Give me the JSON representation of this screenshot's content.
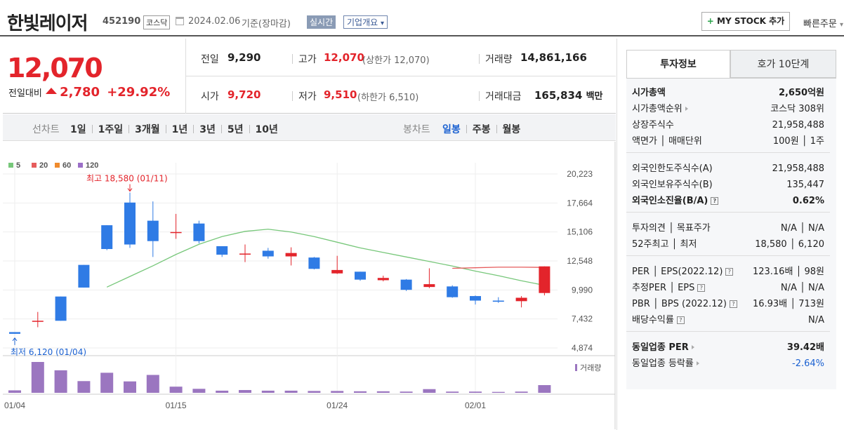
{
  "header": {
    "company": "한빛레이저",
    "code": "452190",
    "market": "코스닥",
    "date": "2024.02.06",
    "basis": "기준(장마감)",
    "realtime": "실시간",
    "overview": "기업개요",
    "overview_arrow": "▾",
    "mystock": "MY STOCK 추가",
    "mystock_plus": "+",
    "quick_order": "빠른주문",
    "quick_arrow": "▾"
  },
  "price": {
    "current": "12,070",
    "change_label": "전일대비",
    "change": "2,780",
    "change_pct": "+29.92%"
  },
  "summary": {
    "prev_label": "전일",
    "prev": "9,290",
    "high_label": "고가",
    "high": "12,070",
    "high_limit": "(상한가 12,070)",
    "volume_label": "거래량",
    "volume": "14,861,166",
    "open_label": "시가",
    "open": "9,720",
    "low_label": "저가",
    "low": "9,510",
    "low_limit": "(하한가 6,510)",
    "amount_label": "거래대금",
    "amount": "165,834",
    "amount_unit": "백만"
  },
  "periods": {
    "line_label": "선차트",
    "line": [
      "1일",
      "1주일",
      "3개월",
      "1년",
      "3년",
      "5년",
      "10년"
    ],
    "candle_label": "봉차트",
    "candle": [
      "일봉",
      "주봉",
      "월봉"
    ]
  },
  "legend": {
    "ma5": "5",
    "ma20": "20",
    "ma60": "60",
    "ma120": "120",
    "volume": "거래량"
  },
  "annotations": {
    "high": "최고 18,580 (01/11)",
    "low": "최저 6,120 (01/04)"
  },
  "chart_data": {
    "type": "candlestick",
    "y_ticks": [
      "20,223",
      "17,664",
      "15,106",
      "12,548",
      "9,990",
      "7,432",
      "4,874"
    ],
    "y_tick_values": [
      20223,
      17664,
      15106,
      12548,
      9990,
      7432,
      4874
    ],
    "ylim": [
      4874,
      20223
    ],
    "x_labels": [
      "01/04",
      "01/15",
      "01/24",
      "02/01"
    ],
    "x_label_index": [
      0,
      7,
      14,
      20
    ],
    "candles": [
      {
        "o": 6270,
        "c": 6120,
        "h": 6270,
        "l": 6120
      },
      {
        "o": 7270,
        "c": 7270,
        "h": 8050,
        "l": 6700
      },
      {
        "o": 9410,
        "c": 7270,
        "h": 9410,
        "l": 7270
      },
      {
        "o": 12200,
        "c": 10200,
        "h": 12200,
        "l": 10200
      },
      {
        "o": 15700,
        "c": 13600,
        "h": 15700,
        "l": 13500
      },
      {
        "o": 17700,
        "c": 14000,
        "h": 18580,
        "l": 13700
      },
      {
        "o": 16100,
        "c": 14300,
        "h": 17800,
        "l": 12900
      },
      {
        "o": 15100,
        "c": 15100,
        "h": 16700,
        "l": 14500
      },
      {
        "o": 15850,
        "c": 14300,
        "h": 16100,
        "l": 14100
      },
      {
        "o": 13850,
        "c": 13100,
        "h": 13850,
        "l": 12900
      },
      {
        "o": 13200,
        "c": 13200,
        "h": 14000,
        "l": 12450
      },
      {
        "o": 13450,
        "c": 12950,
        "h": 13700,
        "l": 12750
      },
      {
        "o": 12950,
        "c": 13250,
        "h": 13750,
        "l": 12150
      },
      {
        "o": 12850,
        "c": 11850,
        "h": 12900,
        "l": 11800
      },
      {
        "o": 11450,
        "c": 11750,
        "h": 13000,
        "l": 11400
      },
      {
        "o": 11600,
        "c": 10900,
        "h": 11600,
        "l": 10800
      },
      {
        "o": 10850,
        "c": 11050,
        "h": 11250,
        "l": 10750
      },
      {
        "o": 10900,
        "c": 10000,
        "h": 10950,
        "l": 9900
      },
      {
        "o": 10250,
        "c": 10500,
        "h": 11900,
        "l": 10150
      },
      {
        "o": 10300,
        "c": 9350,
        "h": 10400,
        "l": 9300
      },
      {
        "o": 9450,
        "c": 9050,
        "h": 9500,
        "l": 8700
      },
      {
        "o": 9050,
        "c": 8950,
        "h": 9350,
        "l": 8850
      },
      {
        "o": 9000,
        "c": 9300,
        "h": 9450,
        "l": 8450
      },
      {
        "o": 9720,
        "c": 12070,
        "h": 12070,
        "l": 9510
      }
    ],
    "ma5": [
      null,
      null,
      null,
      null,
      10240,
      11180,
      12120,
      13120,
      14020,
      14700,
      15160,
      15350,
      15100,
      14700,
      14200,
      13700,
      13300,
      12900,
      12500,
      12100,
      11650,
      11250,
      10800,
      10400
    ],
    "ma20": [
      null,
      null,
      null,
      null,
      null,
      null,
      null,
      null,
      null,
      null,
      null,
      null,
      null,
      null,
      null,
      null,
      null,
      null,
      null,
      11900,
      11950,
      12000,
      12000,
      11980
    ],
    "volume": [
      0.08,
      1.0,
      0.73,
      0.38,
      0.65,
      0.37,
      0.58,
      0.2,
      0.13,
      0.07,
      0.09,
      0.07,
      0.07,
      0.06,
      0.06,
      0.05,
      0.05,
      0.04,
      0.12,
      0.04,
      0.04,
      0.03,
      0.04,
      0.25
    ],
    "colors": {
      "up": "#e3242b",
      "down": "#2f7be5",
      "ma5": "#77c77a",
      "ma20": "#e65c5c",
      "ma60": "#f08b2d",
      "ma120": "#9b6fc7",
      "volume": "#9b76c0"
    }
  },
  "right_panel": {
    "tab_active": "투자정보",
    "tab_other": "호가 10단계",
    "group1": [
      {
        "label": "시가총액",
        "value": "2,650억원",
        "bold": true
      },
      {
        "label": "시가총액순위",
        "value": "코스닥 308위",
        "arrow": true
      },
      {
        "label": "상장주식수",
        "value": "21,958,488"
      },
      {
        "label": "액면가 │ 매매단위",
        "value": "100원 │ 1주"
      }
    ],
    "group2": [
      {
        "label": "외국인한도주식수(A)",
        "value": "21,958,488"
      },
      {
        "label": "외국인보유주식수(B)",
        "value": "135,447"
      },
      {
        "label": "외국인소진율(B/A)",
        "value": "0.62%",
        "bold": true,
        "q": true
      }
    ],
    "group3": [
      {
        "label": "투자의견 │ 목표주가",
        "value": "N/A │ N/A"
      },
      {
        "label": "52주최고 │ 최저",
        "value": "18,580 │ 6,120"
      }
    ],
    "group4": [
      {
        "label": "PER │ EPS(2022.12)",
        "value": "123.16배 │ 98원",
        "q": true
      },
      {
        "label": "추정PER │ EPS",
        "value": "N/A │ N/A",
        "q": true
      },
      {
        "label": "PBR │ BPS (2022.12)",
        "value": "16.93배 │ 713원",
        "q": true
      },
      {
        "label": "배당수익률",
        "value": "N/A",
        "q": true
      }
    ],
    "group5": [
      {
        "label": "동일업종 PER",
        "value": "39.42배",
        "bold": true,
        "arrow": true
      },
      {
        "label": "동일업종 등락률",
        "value": "-2.64%",
        "blueval": true,
        "arrow": true
      }
    ]
  }
}
